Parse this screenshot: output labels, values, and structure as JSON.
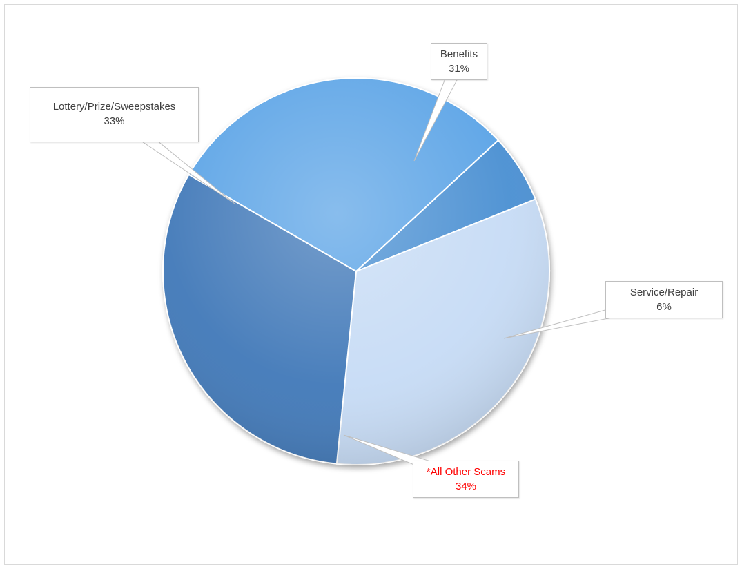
{
  "chart_data": {
    "type": "pie",
    "title": "",
    "slices": [
      {
        "label": "Benefits",
        "value_label": "31%",
        "value": 31,
        "color": "#5aa3e6",
        "label_color": "#404040"
      },
      {
        "label": "Service/Repair",
        "value_label": "6%",
        "value": 6,
        "color": "#4a8fd2",
        "label_color": "#404040"
      },
      {
        "label": "*All Other Scams",
        "value_label": "34%",
        "value": 34,
        "color": "#c6dbf5",
        "label_color": "#ff0000"
      },
      {
        "label": "Lottery/Prize/Sweepstakes",
        "value_label": "33%",
        "value": 33,
        "color": "#3f78b8",
        "label_color": "#404040"
      }
    ],
    "legend": "none",
    "data_labels": "callout"
  }
}
